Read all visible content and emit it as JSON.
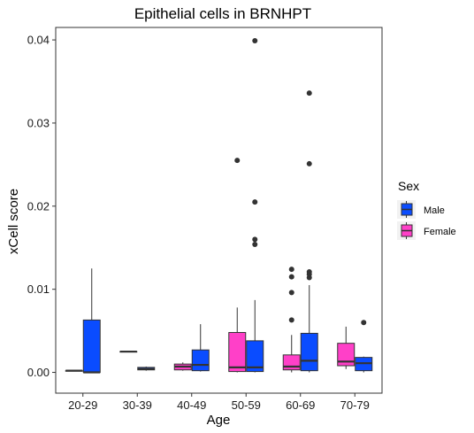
{
  "chart_data": {
    "type": "box",
    "title": "Epithelial cells in BRNHPT",
    "xlabel": "Age",
    "ylabel": "xCell score",
    "ylim": [
      -0.0025,
      0.0415
    ],
    "y_ticks": [
      0.0,
      0.01,
      0.02,
      0.03,
      0.04
    ],
    "y_tick_labels": [
      "0.00",
      "0.01",
      "0.02",
      "0.03",
      "0.04"
    ],
    "categories": [
      "20-29",
      "30-39",
      "40-49",
      "50-59",
      "60-69",
      "70-79"
    ],
    "grid": false,
    "legend": {
      "title": "Sex",
      "position": "right",
      "entries": [
        {
          "label": "Male",
          "color": "#0a4cff"
        },
        {
          "label": "Female",
          "color": "#ff40c8"
        }
      ]
    },
    "series": [
      {
        "name": "Female",
        "color": "#ff40c8",
        "boxes": [
          {
            "category": "20-29",
            "min": 0.0002,
            "q1": 0.0002,
            "median": 0.0002,
            "q3": 0.0002,
            "max": 0.0002,
            "outliers": []
          },
          {
            "category": "30-39",
            "min": 0.0025,
            "q1": 0.0025,
            "median": 0.0025,
            "q3": 0.0025,
            "max": 0.0025,
            "outliers": []
          },
          {
            "category": "40-49",
            "min": 0.0002,
            "q1": 0.0003,
            "median": 0.0007,
            "q3": 0.001,
            "max": 0.0012,
            "outliers": []
          },
          {
            "category": "50-59",
            "min": 0.0,
            "q1": 0.0001,
            "median": 0.0006,
            "q3": 0.0048,
            "max": 0.0078,
            "outliers": [
              0.0255
            ]
          },
          {
            "category": "60-69",
            "min": 0.0,
            "q1": 0.0003,
            "median": 0.0007,
            "q3": 0.0021,
            "max": 0.0045,
            "outliers": [
              0.0063,
              0.0096,
              0.0115,
              0.0124
            ]
          },
          {
            "category": "70-79",
            "min": 0.0004,
            "q1": 0.0008,
            "median": 0.0013,
            "q3": 0.0035,
            "max": 0.0055,
            "outliers": []
          }
        ]
      },
      {
        "name": "Male",
        "color": "#0a4cff",
        "boxes": [
          {
            "category": "20-29",
            "min": 0.0,
            "q1": 0.0,
            "median": 0.0,
            "q3": 0.0063,
            "max": 0.0125,
            "outliers": []
          },
          {
            "category": "30-39",
            "min": 0.0002,
            "q1": 0.0003,
            "median": 0.0004,
            "q3": 0.0006,
            "max": 0.0007,
            "outliers": []
          },
          {
            "category": "40-49",
            "min": 0.0001,
            "q1": 0.0002,
            "median": 0.0009,
            "q3": 0.0027,
            "max": 0.0058,
            "outliers": []
          },
          {
            "category": "50-59",
            "min": 0.0,
            "q1": 0.0001,
            "median": 0.0006,
            "q3": 0.0038,
            "max": 0.0087,
            "outliers": [
              0.0154,
              0.016,
              0.0205,
              0.0399
            ]
          },
          {
            "category": "60-69",
            "min": 0.0,
            "q1": 0.0002,
            "median": 0.0014,
            "q3": 0.0047,
            "max": 0.0105,
            "outliers": [
              0.0114,
              0.0118,
              0.0121,
              0.0251,
              0.0336
            ]
          },
          {
            "category": "70-79",
            "min": 0.0,
            "q1": 0.0002,
            "median": 0.0011,
            "q3": 0.0018,
            "max": 0.0019,
            "outliers": [
              0.006
            ]
          }
        ]
      }
    ]
  }
}
